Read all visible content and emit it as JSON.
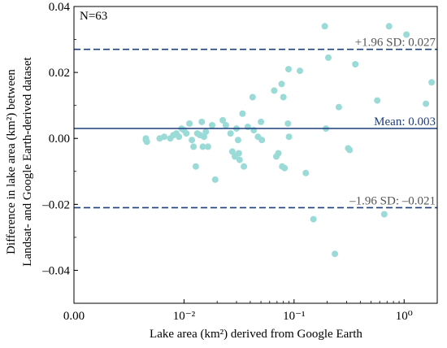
{
  "chart_data": {
    "type": "scatter",
    "annotation_n": "N=63",
    "xlabel": "Lake area (km²) derived from Google Earth",
    "ylabel_line1": "Difference in lake area (km²) between",
    "ylabel_line2": "Landsat- and Google Earth-derived dataset",
    "x_scale": "log (0.00 shown at left end)",
    "x_ticks": [
      {
        "value": 0.001,
        "label": "0.00"
      },
      {
        "value": 0.01,
        "label": "10⁻²"
      },
      {
        "value": 0.1,
        "label": "10⁻¹"
      },
      {
        "value": 1,
        "label": "10⁰"
      }
    ],
    "xlim": [
      0.001,
      2
    ],
    "y_ticks": [
      {
        "value": 0.04,
        "label": "0.04"
      },
      {
        "value": 0.02,
        "label": "0.02"
      },
      {
        "value": 0.0,
        "label": "0.00"
      },
      {
        "value": -0.02,
        "label": "–0.02"
      },
      {
        "value": -0.04,
        "label": "–0.04"
      }
    ],
    "ylim": [
      -0.05,
      0.04
    ],
    "grid": false,
    "lines": [
      {
        "name": "upper",
        "label": "+1.96 SD: 0.027",
        "y": 0.027,
        "style": "dashed"
      },
      {
        "name": "mean",
        "label": "Mean: 0.003",
        "y": 0.003,
        "style": "solid"
      },
      {
        "name": "lower",
        "label": "–1.96 SD: –0.021",
        "y": -0.021,
        "style": "dashed"
      }
    ],
    "colors": {
      "points": "#9adbd8",
      "lines": "#1f3f7a",
      "sd_text": "#555555",
      "mean_text": "#1f3f7a"
    },
    "points": [
      [
        0.0045,
        0.0
      ],
      [
        0.0045,
        -0.0005
      ],
      [
        0.0046,
        -0.001
      ],
      [
        0.006,
        0.0
      ],
      [
        0.0066,
        0.0005
      ],
      [
        0.0075,
        0.0
      ],
      [
        0.008,
        0.001
      ],
      [
        0.0085,
        0.0015
      ],
      [
        0.009,
        0.0005
      ],
      [
        0.0095,
        0.003
      ],
      [
        0.01,
        0.0025
      ],
      [
        0.0105,
        0.0015
      ],
      [
        0.0112,
        0.0045
      ],
      [
        0.0118,
        -0.0005
      ],
      [
        0.0122,
        -0.0025
      ],
      [
        0.0128,
        -0.0085
      ],
      [
        0.0132,
        0.0015
      ],
      [
        0.014,
        0.001
      ],
      [
        0.0145,
        0.005
      ],
      [
        0.0148,
        -0.0025
      ],
      [
        0.0152,
        0.0005
      ],
      [
        0.0158,
        0.002
      ],
      [
        0.0165,
        -0.0025
      ],
      [
        0.018,
        0.004
      ],
      [
        0.0192,
        -0.0125
      ],
      [
        0.0225,
        0.0055
      ],
      [
        0.024,
        0.004
      ],
      [
        0.0265,
        0.0015
      ],
      [
        0.0275,
        -0.004
      ],
      [
        0.029,
        -0.0055
      ],
      [
        0.03,
        0.003
      ],
      [
        0.031,
        -0.0005
      ],
      [
        0.0315,
        -0.0045
      ],
      [
        0.032,
        -0.0065
      ],
      [
        0.034,
        0.0075
      ],
      [
        0.035,
        -0.0085
      ],
      [
        0.038,
        0.0035
      ],
      [
        0.042,
        0.0125
      ],
      [
        0.043,
        0.0025
      ],
      [
        0.047,
        0.0005
      ],
      [
        0.05,
        0.005
      ],
      [
        0.051,
        -0.0005
      ],
      [
        0.066,
        0.0145
      ],
      [
        0.069,
        -0.0055
      ],
      [
        0.072,
        -0.0045
      ],
      [
        0.077,
        0.0165
      ],
      [
        0.078,
        -0.0085
      ],
      [
        0.08,
        0.0125
      ],
      [
        0.082,
        -0.009
      ],
      [
        0.088,
        0.0045
      ],
      [
        0.089,
        0.021
      ],
      [
        0.09,
        0.0005
      ],
      [
        0.113,
        0.0205
      ],
      [
        0.128,
        -0.0105
      ],
      [
        0.15,
        -0.0245
      ],
      [
        0.19,
        0.034
      ],
      [
        0.195,
        0.003
      ],
      [
        0.205,
        0.0245
      ],
      [
        0.235,
        -0.035
      ],
      [
        0.255,
        0.0095
      ],
      [
        0.32,
        -0.0035
      ],
      [
        0.36,
        0.0225
      ],
      [
        0.57,
        0.0115
      ]
    ],
    "points_extra": [
      [
        0.31,
        -0.003
      ],
      [
        0.66,
        -0.023
      ],
      [
        0.73,
        0.034
      ],
      [
        1.05,
        0.0315
      ],
      [
        1.58,
        0.0105
      ],
      [
        1.78,
        0.017
      ]
    ]
  }
}
